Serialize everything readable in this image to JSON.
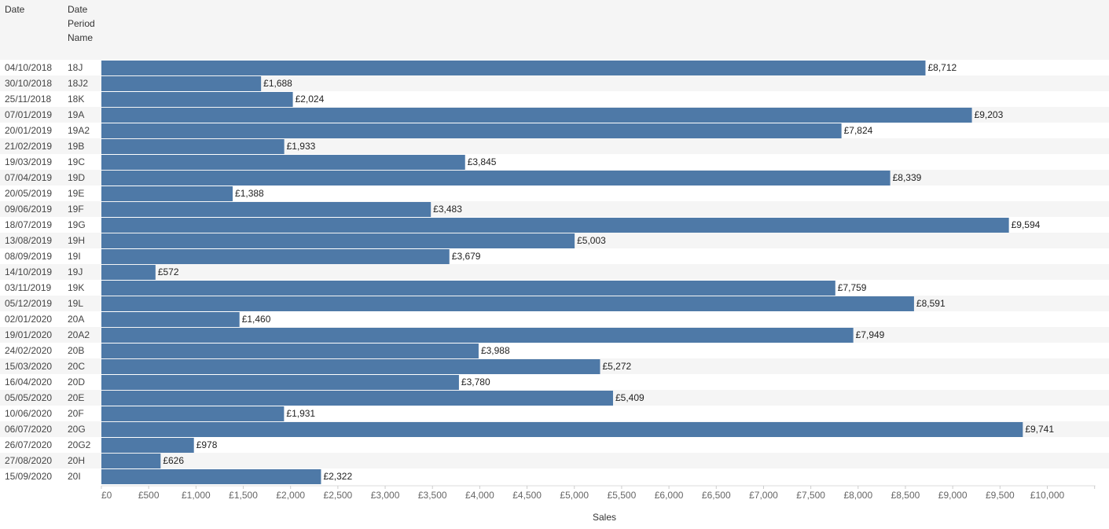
{
  "header": {
    "date_label": "Date",
    "period_label": "Date\nPeriod\nName"
  },
  "colors": {
    "bar": "#4e79a7",
    "band": "#f5f5f5"
  },
  "chart_data": {
    "type": "bar",
    "orientation": "horizontal",
    "rows": [
      {
        "date": "04/10/2018",
        "period": "18J",
        "value": 8712,
        "label": "£8,712"
      },
      {
        "date": "30/10/2018",
        "period": "18J2",
        "value": 1688,
        "label": "£1,688"
      },
      {
        "date": "25/11/2018",
        "period": "18K",
        "value": 2024,
        "label": "£2,024"
      },
      {
        "date": "07/01/2019",
        "period": "19A",
        "value": 9203,
        "label": "£9,203"
      },
      {
        "date": "20/01/2019",
        "period": "19A2",
        "value": 7824,
        "label": "£7,824"
      },
      {
        "date": "21/02/2019",
        "period": "19B",
        "value": 1933,
        "label": "£1,933"
      },
      {
        "date": "19/03/2019",
        "period": "19C",
        "value": 3845,
        "label": "£3,845"
      },
      {
        "date": "07/04/2019",
        "period": "19D",
        "value": 8339,
        "label": "£8,339"
      },
      {
        "date": "20/05/2019",
        "period": "19E",
        "value": 1388,
        "label": "£1,388"
      },
      {
        "date": "09/06/2019",
        "period": "19F",
        "value": 3483,
        "label": "£3,483"
      },
      {
        "date": "18/07/2019",
        "period": "19G",
        "value": 9594,
        "label": "£9,594"
      },
      {
        "date": "13/08/2019",
        "period": "19H",
        "value": 5003,
        "label": "£5,003"
      },
      {
        "date": "08/09/2019",
        "period": "19I",
        "value": 3679,
        "label": "£3,679"
      },
      {
        "date": "14/10/2019",
        "period": "19J",
        "value": 572,
        "label": "£572"
      },
      {
        "date": "03/11/2019",
        "period": "19K",
        "value": 7759,
        "label": "£7,759"
      },
      {
        "date": "05/12/2019",
        "period": "19L",
        "value": 8591,
        "label": "£8,591"
      },
      {
        "date": "02/01/2020",
        "period": "20A",
        "value": 1460,
        "label": "£1,460"
      },
      {
        "date": "19/01/2020",
        "period": "20A2",
        "value": 7949,
        "label": "£7,949"
      },
      {
        "date": "24/02/2020",
        "period": "20B",
        "value": 3988,
        "label": "£3,988"
      },
      {
        "date": "15/03/2020",
        "period": "20C",
        "value": 5272,
        "label": "£5,272"
      },
      {
        "date": "16/04/2020",
        "period": "20D",
        "value": 3780,
        "label": "£3,780"
      },
      {
        "date": "05/05/2020",
        "period": "20E",
        "value": 5409,
        "label": "£5,409"
      },
      {
        "date": "10/06/2020",
        "period": "20F",
        "value": 1931,
        "label": "£1,931"
      },
      {
        "date": "06/07/2020",
        "period": "20G",
        "value": 9741,
        "label": "£9,741"
      },
      {
        "date": "26/07/2020",
        "period": "20G2",
        "value": 978,
        "label": "£978"
      },
      {
        "date": "27/08/2020",
        "period": "20H",
        "value": 626,
        "label": "£626"
      },
      {
        "date": "15/09/2020",
        "period": "20I",
        "value": 2322,
        "label": "£2,322"
      }
    ],
    "xlabel": "Sales",
    "xlim": [
      0,
      10500
    ],
    "ticks": [
      0,
      500,
      1000,
      1500,
      2000,
      2500,
      3000,
      3500,
      4000,
      4500,
      5000,
      5500,
      6000,
      6500,
      7000,
      7500,
      8000,
      8500,
      9000,
      9500,
      10000,
      10500
    ],
    "tick_labels": [
      "£0",
      "£500",
      "£1,000",
      "£1,500",
      "£2,000",
      "£2,500",
      "£3,000",
      "£3,500",
      "£4,000",
      "£4,500",
      "£5,000",
      "£5,500",
      "£6,000",
      "£6,500",
      "£7,000",
      "£7,500",
      "£8,000",
      "£8,500",
      "£9,000",
      "£9,500",
      "£10,000",
      ""
    ],
    "grid": false,
    "legend": "none"
  }
}
